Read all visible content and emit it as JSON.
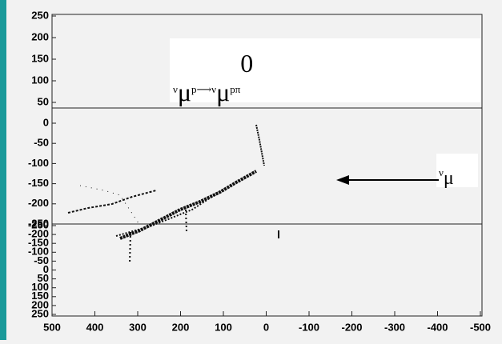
{
  "top_panel": {
    "yticks": [
      250,
      200,
      150,
      100,
      50
    ]
  },
  "middle_panel": {
    "yticks": [
      0,
      -50,
      -100,
      -150,
      -200,
      -250
    ]
  },
  "bottom_panel": {
    "yticks": [
      -250,
      -200,
      -150,
      -100,
      -50,
      0,
      50,
      100,
      150,
      200,
      250
    ]
  },
  "x_axis": {
    "ticks": [
      500,
      400,
      300,
      200,
      100,
      0,
      -100,
      -200,
      -300,
      -400,
      -500
    ]
  },
  "formula": {
    "parts": [
      "ν",
      "μ",
      "p⟶ν",
      "μ",
      "pπ",
      "0"
    ]
  },
  "beam_label": {
    "parts": [
      "ν",
      "μ"
    ]
  }
}
